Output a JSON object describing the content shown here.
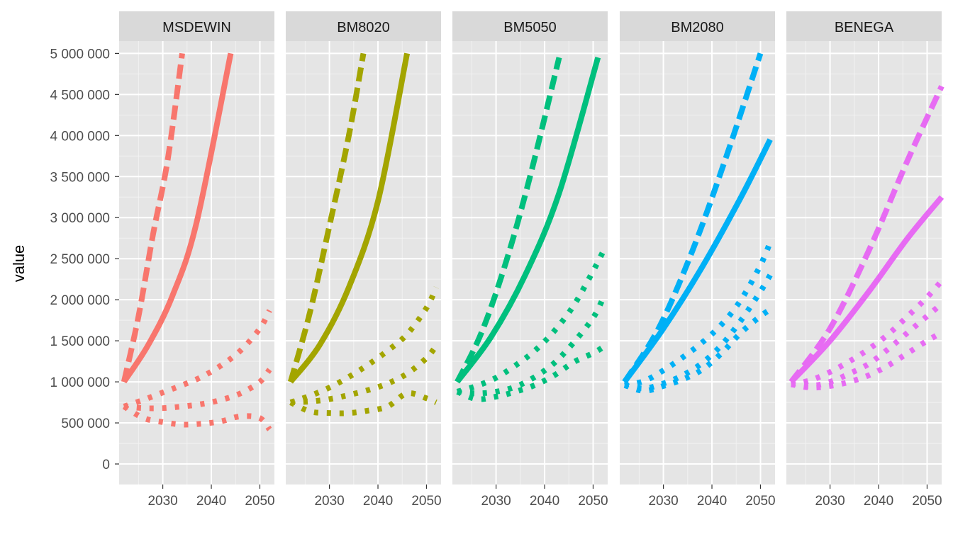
{
  "chart_data": {
    "type": "line",
    "facet_by": "scenario",
    "xlabel": "",
    "ylabel": "value",
    "xlim": [
      2021,
      2053
    ],
    "ylim": [
      -250000,
      5150000
    ],
    "x_ticks": [
      2030,
      2040,
      2050
    ],
    "y_ticks": [
      0,
      500000,
      1000000,
      1500000,
      2000000,
      2500000,
      3000000,
      3500000,
      4000000,
      4500000,
      5000000
    ],
    "y_tick_labels": [
      "0",
      "500 000",
      "1 000 000",
      "1 500 000",
      "2 000 000",
      "2 500 000",
      "3 000 000",
      "3 500 000",
      "4 000 000",
      "4 500 000",
      "5 000 000"
    ],
    "panel_bg": "#e5e5e5",
    "strip_bg": "#d9d9d9",
    "line_styles": [
      "dashed",
      "solid",
      "dotted",
      "dotted",
      "dotted"
    ],
    "panels": [
      {
        "title": "MSDEWIN",
        "color": "#f8766d",
        "series": [
          {
            "style": "dashed",
            "x": [
              2022,
              2025,
              2028,
              2031,
              2034
            ],
            "y": [
              1000000,
              1800000,
              2800000,
              3700000,
              5000000
            ]
          },
          {
            "style": "solid",
            "x": [
              2022,
              2027,
              2032,
              2037,
              2044
            ],
            "y": [
              1000000,
              1450000,
              2050000,
              2950000,
              5000000
            ]
          },
          {
            "style": "dotted",
            "x": [
              2022,
              2026,
              2030,
              2034,
              2038,
              2042,
              2046,
              2050,
              2052
            ],
            "y": [
              700000,
              780000,
              870000,
              960000,
              1060000,
              1200000,
              1380000,
              1650000,
              1870000
            ]
          },
          {
            "style": "dotted",
            "x": [
              2022,
              2026,
              2030,
              2034,
              2038,
              2042,
              2046,
              2050,
              2052
            ],
            "y": [
              700000,
              680000,
              680000,
              700000,
              730000,
              780000,
              860000,
              1000000,
              1150000
            ]
          },
          {
            "style": "dotted",
            "x": [
              2022,
              2026,
              2030,
              2034,
              2038,
              2042,
              2046,
              2050,
              2052
            ],
            "y": [
              700000,
              560000,
              510000,
              480000,
              490000,
              520000,
              580000,
              560000,
              420000
            ]
          }
        ]
      },
      {
        "title": "BM8020",
        "color": "#a3a500",
        "series": [
          {
            "style": "dashed",
            "x": [
              2022,
              2026,
              2030,
              2034,
              2037
            ],
            "y": [
              1000000,
              1850000,
              2900000,
              4000000,
              5000000
            ]
          },
          {
            "style": "solid",
            "x": [
              2022,
              2028,
              2034,
              2040,
              2046
            ],
            "y": [
              1000000,
              1450000,
              2150000,
              3200000,
              5000000
            ]
          },
          {
            "style": "dotted",
            "x": [
              2022,
              2026,
              2030,
              2034,
              2038,
              2042,
              2046,
              2050,
              2052
            ],
            "y": [
              750000,
              830000,
              930000,
              1060000,
              1210000,
              1380000,
              1580000,
              1900000,
              2150000
            ]
          },
          {
            "style": "dotted",
            "x": [
              2022,
              2026,
              2030,
              2034,
              2038,
              2042,
              2046,
              2050,
              2052
            ],
            "y": [
              750000,
              760000,
              790000,
              840000,
              900000,
              980000,
              1100000,
              1290000,
              1440000
            ]
          },
          {
            "style": "dotted",
            "x": [
              2022,
              2026,
              2030,
              2034,
              2038,
              2042,
              2046,
              2050,
              2052
            ],
            "y": [
              750000,
              640000,
              620000,
              620000,
              650000,
              700000,
              860000,
              800000,
              750000
            ]
          }
        ]
      },
      {
        "title": "BM5050",
        "color": "#00bf7d",
        "series": [
          {
            "style": "dashed",
            "x": [
              2022,
              2027,
              2032,
              2037,
              2043
            ],
            "y": [
              1000000,
              1600000,
              2450000,
              3500000,
              4950000
            ]
          },
          {
            "style": "solid",
            "x": [
              2022,
              2029,
              2036,
              2043,
              2051
            ],
            "y": [
              1000000,
              1550000,
              2300000,
              3300000,
              4950000
            ]
          },
          {
            "style": "dotted",
            "x": [
              2022,
              2026,
              2030,
              2034,
              2038,
              2042,
              2046,
              2050,
              2052
            ],
            "y": [
              880000,
              950000,
              1050000,
              1200000,
              1380000,
              1620000,
              1930000,
              2350000,
              2580000
            ]
          },
          {
            "style": "dotted",
            "x": [
              2022,
              2026,
              2030,
              2034,
              2038,
              2042,
              2046,
              2050,
              2052
            ],
            "y": [
              880000,
              860000,
              880000,
              940000,
              1060000,
              1230000,
              1480000,
              1780000,
              2010000
            ]
          },
          {
            "style": "dotted",
            "x": [
              2022,
              2026,
              2030,
              2034,
              2038,
              2042,
              2046,
              2050,
              2052
            ],
            "y": [
              880000,
              790000,
              820000,
              880000,
              960000,
              1080000,
              1240000,
              1350000,
              1420000
            ]
          }
        ]
      },
      {
        "title": "BM2080",
        "color": "#00b0f6",
        "series": [
          {
            "style": "dashed",
            "x": [
              2022,
              2029,
              2036,
              2043,
              2050
            ],
            "y": [
              1000000,
              1650000,
              2600000,
              3750000,
              5000000
            ]
          },
          {
            "style": "solid",
            "x": [
              2022,
              2030,
              2038,
              2046,
              2052
            ],
            "y": [
              1000000,
              1650000,
              2400000,
              3250000,
              3950000
            ]
          },
          {
            "style": "dotted",
            "x": [
              2022,
              2026,
              2030,
              2034,
              2038,
              2042,
              2046,
              2050,
              2052
            ],
            "y": [
              960000,
              1010000,
              1140000,
              1300000,
              1480000,
              1700000,
              2000000,
              2420000,
              2700000
            ]
          },
          {
            "style": "dotted",
            "x": [
              2022,
              2026,
              2030,
              2034,
              2038,
              2042,
              2046,
              2050,
              2052
            ],
            "y": [
              960000,
              920000,
              980000,
              1080000,
              1230000,
              1450000,
              1750000,
              2100000,
              2300000
            ]
          },
          {
            "style": "dotted",
            "x": [
              2022,
              2026,
              2030,
              2034,
              2038,
              2042,
              2046,
              2050,
              2052
            ],
            "y": [
              960000,
              890000,
              950000,
              1030000,
              1150000,
              1350000,
              1600000,
              1800000,
              1880000
            ]
          }
        ]
      },
      {
        "title": "BENEGA",
        "color": "#e76bf3",
        "series": [
          {
            "style": "dashed",
            "x": [
              2022,
              2030,
              2038,
              2046,
              2053
            ],
            "y": [
              1000000,
              1650000,
              2600000,
              3700000,
              4600000
            ]
          },
          {
            "style": "solid",
            "x": [
              2022,
              2030,
              2038,
              2046,
              2053
            ],
            "y": [
              1000000,
              1500000,
              2100000,
              2750000,
              3250000
            ]
          },
          {
            "style": "dotted",
            "x": [
              2022,
              2026,
              2030,
              2034,
              2038,
              2042,
              2046,
              2050,
              2053
            ],
            "y": [
              970000,
              1020000,
              1120000,
              1250000,
              1400000,
              1580000,
              1800000,
              2030000,
              2230000
            ]
          },
          {
            "style": "dotted",
            "x": [
              2022,
              2026,
              2030,
              2034,
              2038,
              2042,
              2046,
              2050,
              2053
            ],
            "y": [
              970000,
              950000,
              1000000,
              1100000,
              1220000,
              1400000,
              1600000,
              1800000,
              1950000
            ]
          },
          {
            "style": "dotted",
            "x": [
              2022,
              2026,
              2030,
              2034,
              2038,
              2042,
              2046,
              2050,
              2053
            ],
            "y": [
              970000,
              930000,
              950000,
              1000000,
              1080000,
              1200000,
              1350000,
              1500000,
              1600000
            ]
          }
        ]
      }
    ]
  }
}
